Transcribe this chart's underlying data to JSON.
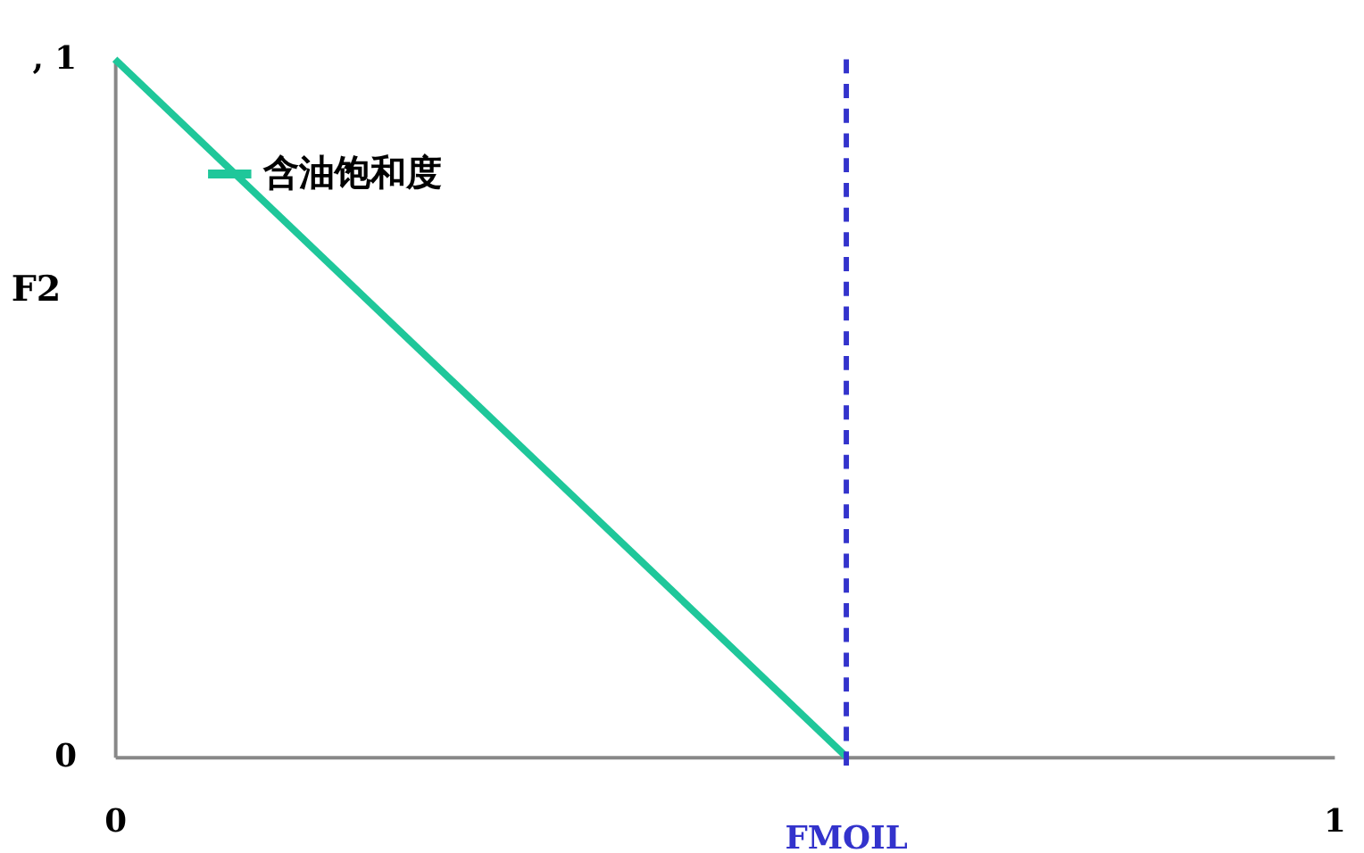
{
  "chart_data": {
    "type": "line",
    "ylabel": "F2",
    "x": [
      0,
      0.6
    ],
    "series": [
      {
        "name": "含油饱和度",
        "color": "#1fc79a",
        "values": [
          1,
          0
        ]
      }
    ],
    "xlim": [
      0,
      1
    ],
    "xticks": [
      0,
      1
    ],
    "ylim": [
      0,
      1
    ],
    "yticks": [
      0,
      {
        "value": 1,
        "label": ", 1"
      }
    ],
    "ref_lines": [
      {
        "axis": "x",
        "value": 0.6,
        "label": "FMOIL",
        "color": "#3333cc",
        "line_style": "dashed"
      }
    ],
    "legend": "top left",
    "grid": false,
    "marker": "none",
    "line_style": "solid"
  }
}
